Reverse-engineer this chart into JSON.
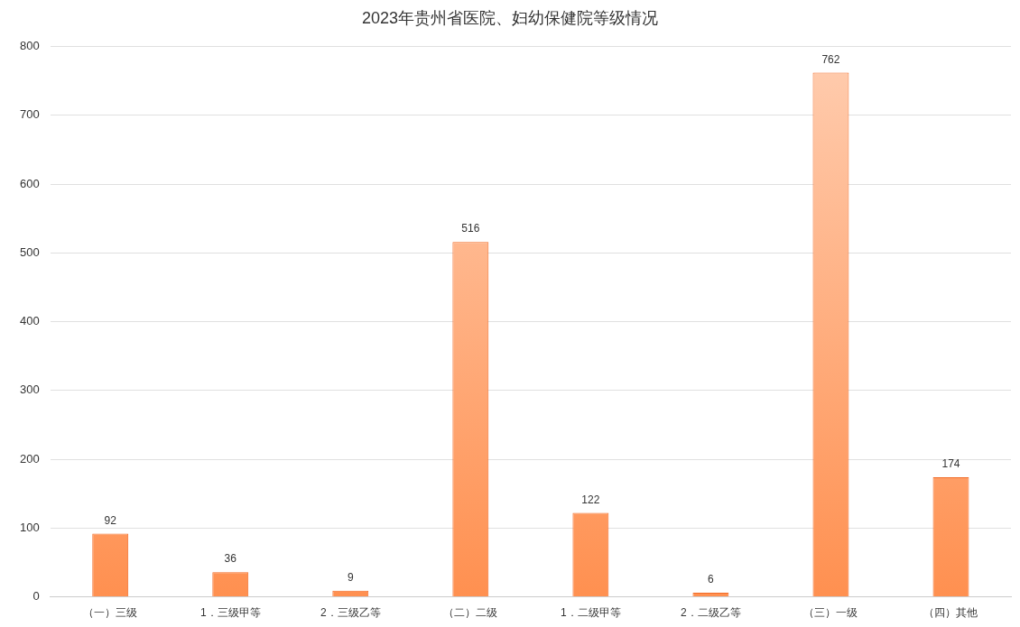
{
  "chart_data": {
    "type": "bar",
    "title": "2023年贵州省医院、妇幼保健院等级情况",
    "categories": [
      "（一）三级",
      "1．三级甲等",
      "2．三级乙等",
      "（二）二级",
      "1．二级甲等",
      "2．二级乙等",
      "（三）一级",
      "（四）其他"
    ],
    "values": [
      92,
      36,
      9,
      516,
      122,
      6,
      762,
      174
    ],
    "color": "#ff9050",
    "ylim": [
      0,
      800
    ],
    "yticks": [
      0,
      100,
      200,
      300,
      400,
      500,
      600,
      700,
      800
    ],
    "grid": "y",
    "data_labels": true
  }
}
